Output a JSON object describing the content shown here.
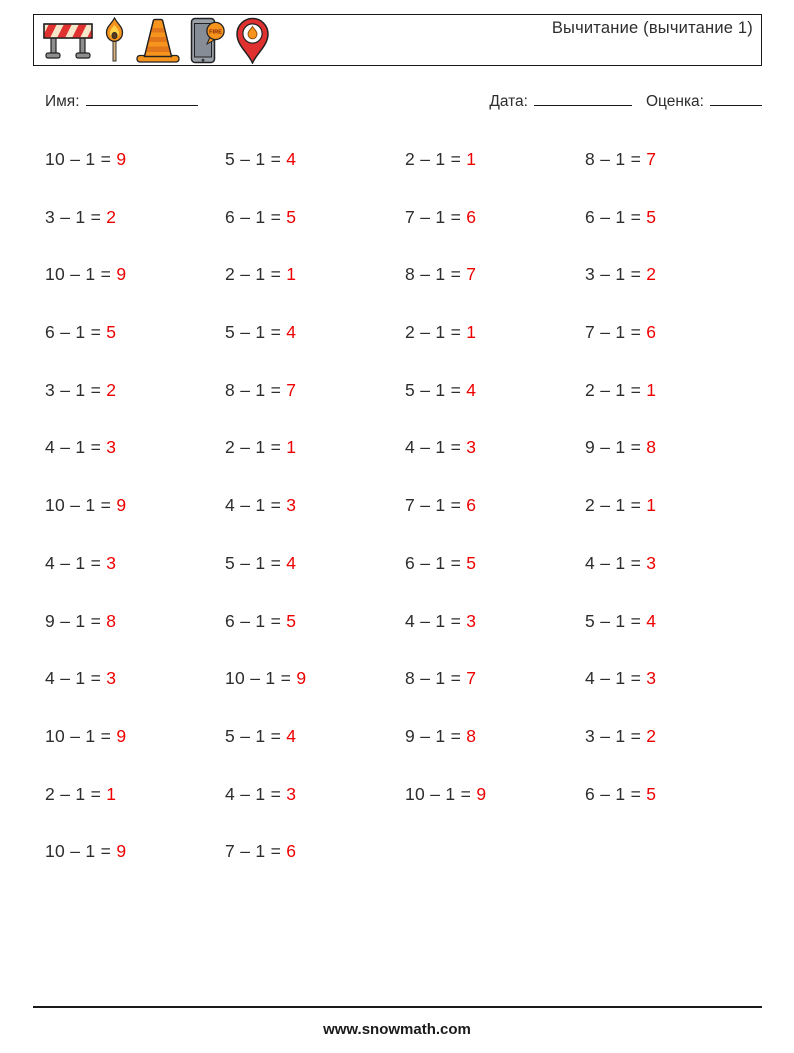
{
  "header": {
    "title": "Вычитание (вычитание 1)",
    "icons": [
      "barrier-icon",
      "burning-match-icon",
      "traffic-cone-icon",
      "fire-phone-icon",
      "fire-location-pin-icon"
    ],
    "phone_bubble_text": "FIRE"
  },
  "fields": {
    "name_label": "Имя:",
    "date_label": "Дата:",
    "grade_label": "Оценка:"
  },
  "problems": {
    "operator": "–",
    "equals": "=",
    "subtrahend": 1,
    "rows": [
      [
        {
          "a": 10,
          "ans": 9
        },
        {
          "a": 5,
          "ans": 4
        },
        {
          "a": 2,
          "ans": 1
        },
        {
          "a": 8,
          "ans": 7
        }
      ],
      [
        {
          "a": 3,
          "ans": 2
        },
        {
          "a": 6,
          "ans": 5
        },
        {
          "a": 7,
          "ans": 6
        },
        {
          "a": 6,
          "ans": 5
        }
      ],
      [
        {
          "a": 10,
          "ans": 9
        },
        {
          "a": 2,
          "ans": 1
        },
        {
          "a": 8,
          "ans": 7
        },
        {
          "a": 3,
          "ans": 2
        }
      ],
      [
        {
          "a": 6,
          "ans": 5
        },
        {
          "a": 5,
          "ans": 4
        },
        {
          "a": 2,
          "ans": 1
        },
        {
          "a": 7,
          "ans": 6
        }
      ],
      [
        {
          "a": 3,
          "ans": 2
        },
        {
          "a": 8,
          "ans": 7
        },
        {
          "a": 5,
          "ans": 4
        },
        {
          "a": 2,
          "ans": 1
        }
      ],
      [
        {
          "a": 4,
          "ans": 3
        },
        {
          "a": 2,
          "ans": 1
        },
        {
          "a": 4,
          "ans": 3
        },
        {
          "a": 9,
          "ans": 8
        }
      ],
      [
        {
          "a": 10,
          "ans": 9
        },
        {
          "a": 4,
          "ans": 3
        },
        {
          "a": 7,
          "ans": 6
        },
        {
          "a": 2,
          "ans": 1
        }
      ],
      [
        {
          "a": 4,
          "ans": 3
        },
        {
          "a": 5,
          "ans": 4
        },
        {
          "a": 6,
          "ans": 5
        },
        {
          "a": 4,
          "ans": 3
        }
      ],
      [
        {
          "a": 9,
          "ans": 8
        },
        {
          "a": 6,
          "ans": 5
        },
        {
          "a": 4,
          "ans": 3
        },
        {
          "a": 5,
          "ans": 4
        }
      ],
      [
        {
          "a": 4,
          "ans": 3
        },
        {
          "a": 10,
          "ans": 9
        },
        {
          "a": 8,
          "ans": 7
        },
        {
          "a": 4,
          "ans": 3
        }
      ],
      [
        {
          "a": 10,
          "ans": 9
        },
        {
          "a": 5,
          "ans": 4
        },
        {
          "a": 9,
          "ans": 8
        },
        {
          "a": 3,
          "ans": 2
        }
      ],
      [
        {
          "a": 2,
          "ans": 1
        },
        {
          "a": 4,
          "ans": 3
        },
        {
          "a": 10,
          "ans": 9
        },
        {
          "a": 6,
          "ans": 5
        }
      ],
      [
        {
          "a": 10,
          "ans": 9
        },
        {
          "a": 7,
          "ans": 6
        }
      ]
    ]
  },
  "colors": {
    "answer_red": "#ee0000",
    "text_dark": "#2d2d2d",
    "icon_orange": "#f7941d",
    "icon_red": "#e03131"
  },
  "footer": {
    "url": "www.snowmath.com"
  }
}
